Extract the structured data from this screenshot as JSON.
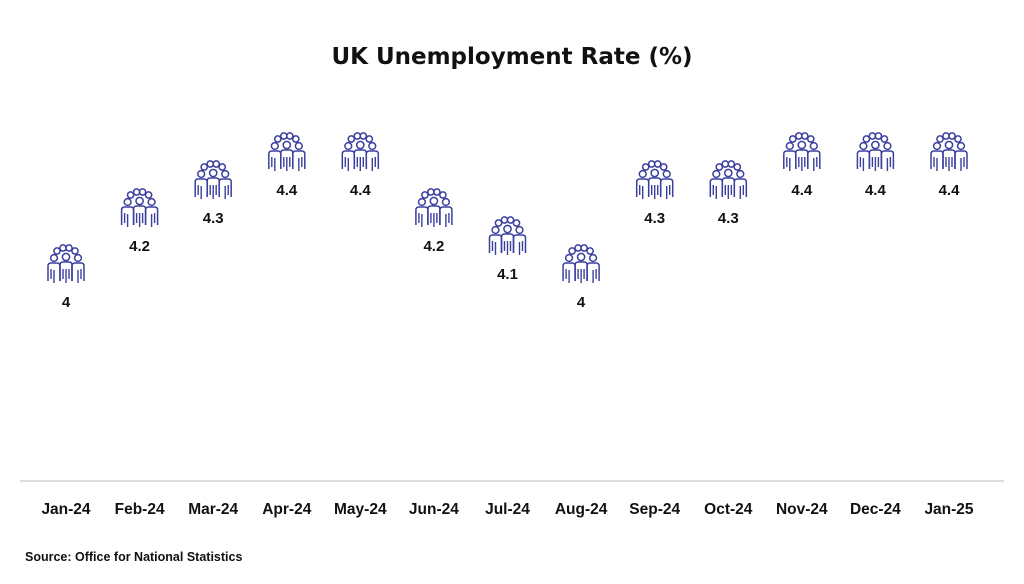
{
  "chart_data": {
    "type": "scatter",
    "marker": "people-group-icon",
    "title": "UK Unemployment Rate (%)",
    "categories": [
      "Jan-24",
      "Feb-24",
      "Mar-24",
      "Apr-24",
      "May-24",
      "Jun-24",
      "Jul-24",
      "Aug-24",
      "Sep-24",
      "Oct-24",
      "Nov-24",
      "Dec-24",
      "Jan-25"
    ],
    "values": [
      4,
      4.2,
      4.3,
      4.4,
      4.4,
      4.2,
      4.1,
      4,
      4.3,
      4.3,
      4.4,
      4.4,
      4.4
    ],
    "value_labels": [
      "4",
      "4.2",
      "4.3",
      "4.4",
      "4.4",
      "4.2",
      "4.1",
      "4",
      "4.3",
      "4.3",
      "4.4",
      "4.4",
      "4.4"
    ],
    "xlabel": "",
    "ylabel": "",
    "grid": false,
    "source": "Source: Office for National Statistics",
    "colors": {
      "marker": "#3b3f9e",
      "text": "#111111",
      "axis": "#c8c8c8"
    }
  }
}
